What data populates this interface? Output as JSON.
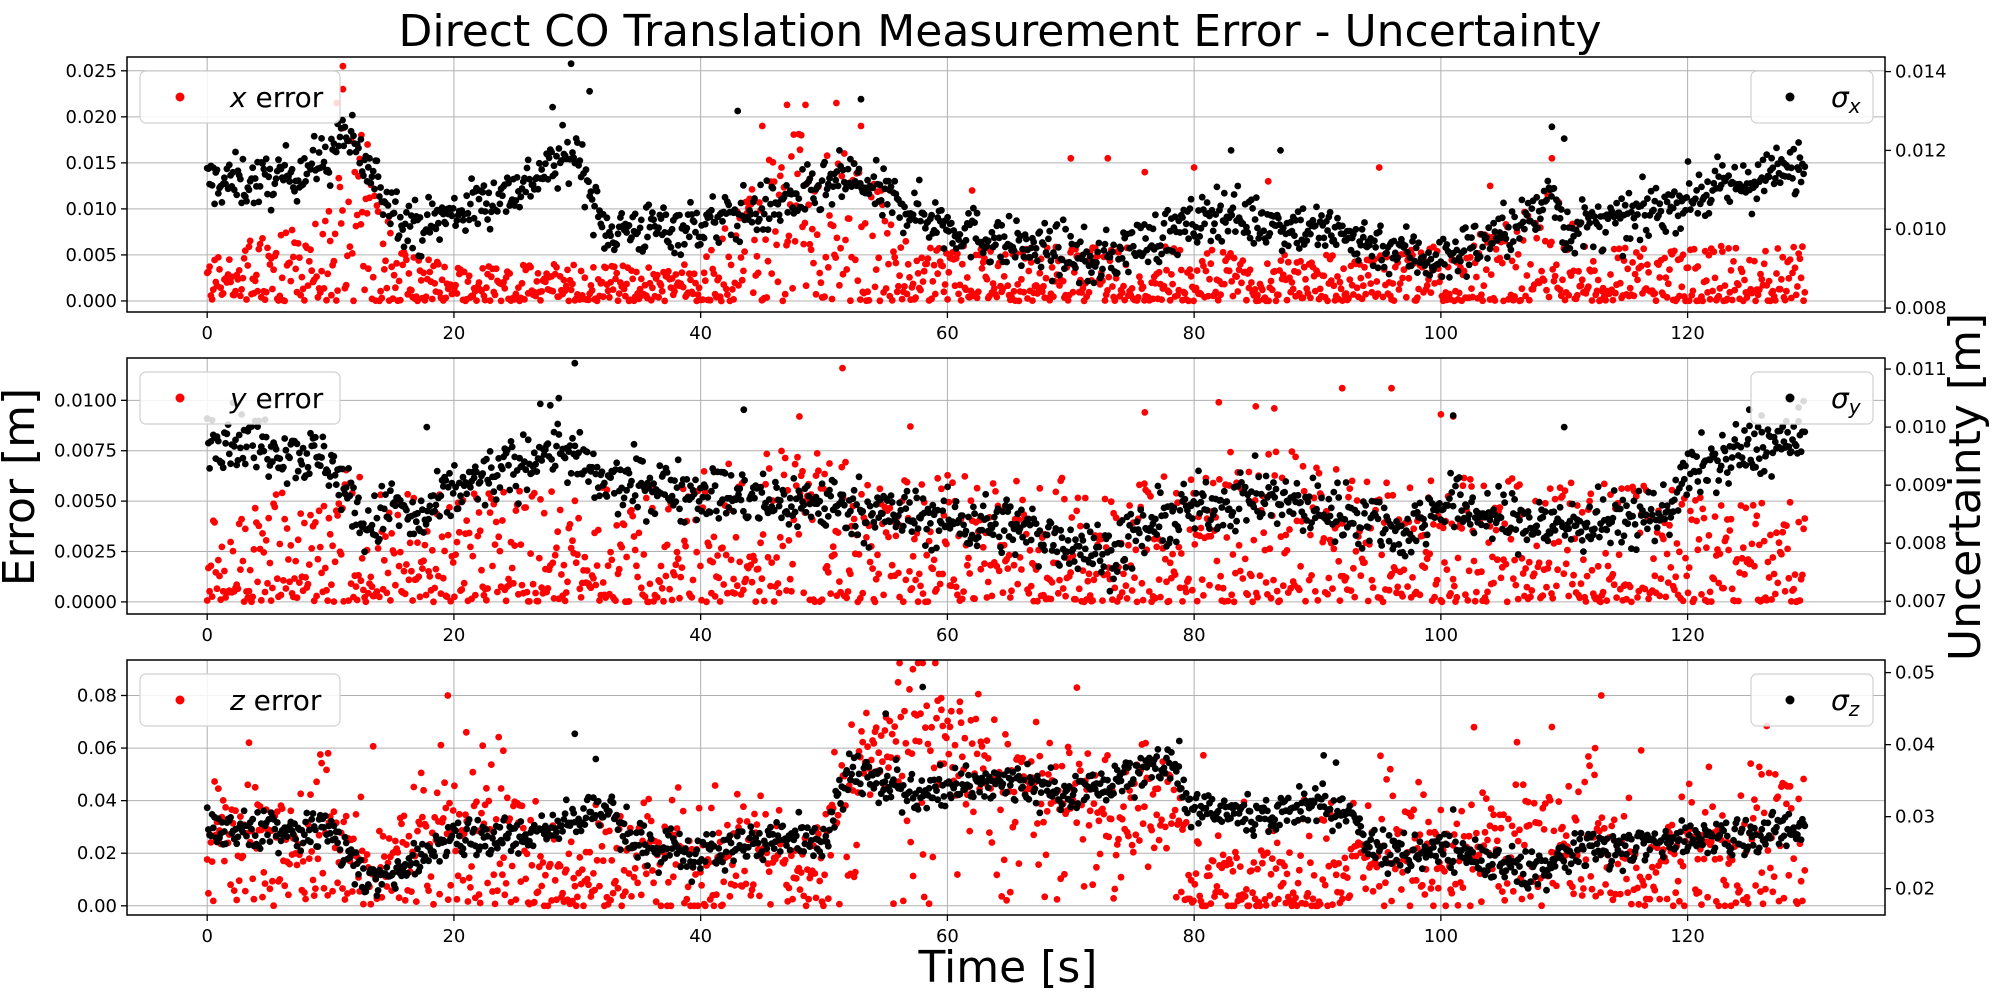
{
  "chart_data": {
    "type": "scatter",
    "title": "Direct CO Translation Measurement Error - Uncertainty",
    "xlabel": "Time [s]",
    "ylabel_left": "Error [m]",
    "ylabel_right": "Uncertainty [m]",
    "xlim": [
      -6.5,
      136
    ],
    "xticks": [
      0,
      20,
      40,
      60,
      80,
      100,
      120
    ],
    "grid": true,
    "colors": {
      "error": "#ff0000",
      "sigma": "#000000"
    },
    "subplots": [
      {
        "error_series": {
          "name_italic": "x",
          "name_rest": " error",
          "ylim": [
            -0.0012,
            0.0265
          ],
          "ticks": [
            0.0,
            0.005,
            0.01,
            0.015,
            0.02,
            0.025
          ],
          "tick_labels": [
            "0.000",
            "0.005",
            "0.010",
            "0.015",
            "0.020",
            "0.025"
          ],
          "t": [
            0,
            5,
            9,
            10,
            11,
            12,
            13,
            16,
            17,
            20,
            30,
            40,
            43,
            45,
            47,
            48,
            50,
            52,
            55,
            57,
            60,
            70,
            75,
            80,
            90,
            95,
            100,
            105,
            108,
            109,
            110,
            115,
            120,
            125,
            130
          ],
          "envelope": [
            0.006,
            0.007,
            0.009,
            0.015,
            0.019,
            0.017,
            0.014,
            0.006,
            0.005,
            0.004,
            0.004,
            0.004,
            0.01,
            0.015,
            0.018,
            0.019,
            0.018,
            0.017,
            0.012,
            0.006,
            0.006,
            0.006,
            0.006,
            0.006,
            0.005,
            0.005,
            0.006,
            0.009,
            0.011,
            0.013,
            0.009,
            0.006,
            0.006,
            0.006,
            0.006
          ],
          "highlights": [
            [
              11,
              0.0255
            ],
            [
              11,
              0.023
            ],
            [
              10.5,
              0.0215
            ],
            [
              12.5,
              0.018
            ],
            [
              13,
              0.017
            ],
            [
              47,
              0.0213
            ],
            [
              48.5,
              0.0213
            ],
            [
              51,
              0.0215
            ],
            [
              45,
              0.019
            ],
            [
              53,
              0.019
            ],
            [
              70,
              0.0155
            ],
            [
              73,
              0.0155
            ],
            [
              80,
              0.0145
            ],
            [
              95,
              0.0145
            ],
            [
              109,
              0.0155
            ],
            [
              104,
              0.0125
            ],
            [
              62,
              0.012
            ],
            [
              76,
              0.014
            ],
            [
              86,
              0.013
            ]
          ]
        },
        "sigma_series": {
          "name_base": "σ",
          "name_sub": "x",
          "ylim": [
            0.0079,
            0.01437
          ],
          "ticks": [
            0.008,
            0.01,
            0.012,
            0.014
          ],
          "tick_labels": [
            "0.008",
            "0.010",
            "0.012",
            "0.014"
          ],
          "t": [
            0,
            5,
            10,
            11,
            12,
            15,
            17,
            20,
            25,
            28,
            30,
            32,
            35,
            40,
            45,
            50,
            52,
            55,
            60,
            65,
            70,
            72,
            75,
            80,
            82,
            85,
            90,
            95,
            100,
            105,
            108,
            109,
            110,
            115,
            120,
            125,
            130
          ],
          "mean": [
            0.0112,
            0.0112,
            0.0118,
            0.0125,
            0.012,
            0.0106,
            0.01,
            0.0104,
            0.011,
            0.0116,
            0.012,
            0.01,
            0.01,
            0.0101,
            0.0105,
            0.011,
            0.0113,
            0.0108,
            0.0101,
            0.0096,
            0.0094,
            0.0091,
            0.0096,
            0.0101,
            0.0105,
            0.0102,
            0.01,
            0.0096,
            0.0092,
            0.0099,
            0.0104,
            0.0112,
            0.01,
            0.0102,
            0.0108,
            0.0112,
            0.0116
          ],
          "noise": 0.0006,
          "highlights": [
            [
              29.5,
              0.0142
            ],
            [
              31,
              0.0135
            ],
            [
              28,
              0.0131
            ],
            [
              53,
              0.0133
            ],
            [
              43,
              0.013
            ],
            [
              109,
              0.0126
            ],
            [
              110,
              0.0123
            ],
            [
              87,
              0.012
            ],
            [
              83,
              0.012
            ],
            [
              129,
              0.0122
            ]
          ]
        }
      },
      {
        "error_series": {
          "name_italic": "y",
          "name_rest": " error",
          "ylim": [
            -0.0006,
            0.0121
          ],
          "ticks": [
            0.0,
            0.0025,
            0.005,
            0.0075,
            0.01
          ],
          "tick_labels": [
            "0.0000",
            "0.0025",
            "0.0050",
            "0.0075",
            "0.0100"
          ],
          "t": [
            0,
            5,
            10,
            12,
            15,
            20,
            30,
            40,
            45,
            50,
            55,
            60,
            70,
            75,
            80,
            85,
            90,
            95,
            100,
            105,
            110,
            115,
            120,
            125,
            130
          ],
          "envelope": [
            0.0045,
            0.0055,
            0.006,
            0.007,
            0.006,
            0.0055,
            0.0055,
            0.0065,
            0.0075,
            0.0075,
            0.007,
            0.0065,
            0.0062,
            0.006,
            0.007,
            0.0085,
            0.007,
            0.0065,
            0.007,
            0.0065,
            0.006,
            0.006,
            0.0055,
            0.005,
            0.005
          ],
          "highlights": [
            [
              51.5,
              0.0116
            ],
            [
              92,
              0.0106
            ],
            [
              96,
              0.0106
            ],
            [
              82,
              0.0099
            ],
            [
              85,
              0.0097
            ],
            [
              86.5,
              0.0096
            ],
            [
              100,
              0.0093
            ],
            [
              101,
              0.0092
            ],
            [
              48,
              0.0092
            ],
            [
              57,
              0.0087
            ],
            [
              76,
              0.0094
            ]
          ]
        },
        "sigma_series": {
          "name_base": "σ",
          "name_sub": "y",
          "ylim": [
            0.00678,
            0.01119
          ],
          "ticks": [
            0.007,
            0.008,
            0.009,
            0.01,
            0.011
          ],
          "tick_labels": [
            "0.007",
            "0.008",
            "0.009",
            "0.010",
            "0.011"
          ],
          "t": [
            0,
            5,
            10,
            12,
            13,
            15,
            17,
            20,
            25,
            28,
            30,
            32,
            35,
            40,
            45,
            50,
            55,
            60,
            65,
            70,
            73,
            75,
            80,
            85,
            90,
            95,
            97,
            100,
            105,
            110,
            115,
            118,
            120,
            125,
            130
          ],
          "mean": [
            0.0099,
            0.0097,
            0.0094,
            0.0086,
            0.0082,
            0.0087,
            0.0083,
            0.0089,
            0.0093,
            0.0097,
            0.0094,
            0.009,
            0.009,
            0.0089,
            0.0087,
            0.0087,
            0.0085,
            0.0084,
            0.0083,
            0.008,
            0.0078,
            0.0081,
            0.0086,
            0.0088,
            0.0086,
            0.0084,
            0.0081,
            0.0087,
            0.0084,
            0.0083,
            0.0084,
            0.0085,
            0.0092,
            0.0096,
            0.0098
          ],
          "noise": 0.00045,
          "highlights": [
            [
              29.8,
              0.0111
            ],
            [
              27,
              0.0104
            ],
            [
              43.5,
              0.0103
            ],
            [
              28.5,
              0.0105
            ],
            [
              101,
              0.0102
            ],
            [
              110,
              0.01
            ],
            [
              125,
              0.0103
            ],
            [
              126,
              0.0102
            ],
            [
              128,
              0.0101
            ],
            [
              129,
              0.0101
            ],
            [
              17.8,
              0.01
            ]
          ]
        }
      },
      {
        "error_series": {
          "name_italic": "z",
          "name_rest": " error",
          "ylim": [
            -0.0035,
            0.0935
          ],
          "ticks": [
            0.0,
            0.02,
            0.04,
            0.06,
            0.08
          ],
          "tick_labels": [
            "0.00",
            "0.02",
            "0.04",
            "0.06",
            "0.08"
          ],
          "t": [
            0,
            5,
            10,
            13,
            15,
            18,
            20,
            25,
            28,
            30,
            35,
            40,
            45,
            50,
            52,
            55,
            58,
            60,
            65,
            70,
            75,
            78,
            80,
            85,
            90,
            95,
            100,
            105,
            110,
            113,
            117,
            120,
            125,
            127,
            130
          ],
          "mean": [
            0.028,
            0.025,
            0.028,
            0.018,
            0.02,
            0.028,
            0.035,
            0.03,
            0.015,
            0.01,
            0.022,
            0.02,
            0.022,
            0.012,
            0.05,
            0.06,
            0.068,
            0.062,
            0.045,
            0.04,
            0.038,
            0.042,
            0.015,
            0.01,
            0.01,
            0.02,
            0.02,
            0.025,
            0.03,
            0.025,
            0.015,
            0.022,
            0.025,
            0.04,
            0.028
          ],
          "noise": 0.012,
          "highlights": [
            [
              58,
              0.093
            ],
            [
              57.2,
              0.09
            ],
            [
              19.5,
              0.08
            ],
            [
              59.5,
              0.079
            ],
            [
              70.5,
              0.083
            ],
            [
              113,
              0.08
            ],
            [
              109,
              0.068
            ],
            [
              21,
              0.066
            ],
            [
              24,
              0.059
            ],
            [
              9.8,
              0.058
            ],
            [
              56,
              0.085
            ],
            [
              61,
              0.074
            ],
            [
              126,
              0.05
            ],
            [
              112.5,
              0.06
            ]
          ]
        },
        "sigma_series": {
          "name_base": "σ",
          "name_sub": "z",
          "ylim": [
            0.01635,
            0.05175
          ],
          "ticks": [
            0.02,
            0.03,
            0.04,
            0.05
          ],
          "tick_labels": [
            "0.02",
            "0.03",
            "0.04",
            "0.05"
          ],
          "t": [
            0,
            5,
            10,
            12,
            13,
            15,
            17,
            20,
            25,
            30,
            32,
            35,
            40,
            45,
            50,
            52,
            55,
            60,
            65,
            70,
            75,
            78,
            80,
            85,
            90,
            93,
            95,
            100,
            105,
            108,
            110,
            115,
            120,
            125,
            130
          ],
          "mean": [
            0.029,
            0.028,
            0.028,
            0.024,
            0.021,
            0.022,
            0.024,
            0.027,
            0.027,
            0.03,
            0.032,
            0.026,
            0.025,
            0.027,
            0.026,
            0.037,
            0.034,
            0.034,
            0.035,
            0.033,
            0.036,
            0.037,
            0.031,
            0.03,
            0.032,
            0.03,
            0.025,
            0.025,
            0.024,
            0.022,
            0.025,
            0.026,
            0.027,
            0.027,
            0.029
          ],
          "noise": 0.0025,
          "highlights": [
            [
              29.8,
              0.0415
            ],
            [
              78.8,
              0.0405
            ],
            [
              31.5,
              0.038
            ],
            [
              90.5,
              0.0385
            ],
            [
              91.5,
              0.0375
            ],
            [
              58,
              0.048
            ],
            [
              55,
              0.0443
            ],
            [
              101,
              0.031
            ]
          ]
        }
      }
    ]
  }
}
